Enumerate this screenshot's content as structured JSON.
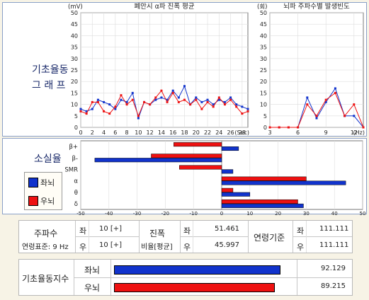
{
  "colors": {
    "left": "#1133cc",
    "right": "#ee1111",
    "frame": "#8aa0c8",
    "bg": "#f7f3e6"
  },
  "section_labels": {
    "basic_graph_line1": "기초율동",
    "basic_graph_line2": "그 래 프",
    "ratio": "소실율"
  },
  "legend": {
    "left": "좌뇌",
    "right": "우뇌"
  },
  "chart_data": [
    {
      "type": "line",
      "title": "폐안시 α파 진폭 평균",
      "ylabel": "(mV)",
      "xlabel": "(Sec)",
      "ylim": [
        0,
        50
      ],
      "xlim": [
        0,
        29
      ],
      "yticks": [
        0,
        5,
        10,
        15,
        20,
        25,
        30,
        35,
        40,
        45,
        50
      ],
      "xticks": [
        0,
        2,
        4,
        6,
        8,
        10,
        12,
        14,
        16,
        18,
        20,
        22,
        24,
        26,
        28
      ],
      "x": [
        0,
        1,
        2,
        3,
        4,
        5,
        6,
        7,
        8,
        9,
        10,
        11,
        12,
        13,
        14,
        15,
        16,
        17,
        18,
        19,
        20,
        21,
        22,
        23,
        24,
        25,
        26,
        27,
        28,
        29
      ],
      "series": [
        {
          "name": "좌뇌",
          "values": [
            8,
            7,
            8,
            12,
            11,
            10,
            8,
            12,
            11,
            15,
            4,
            11,
            10,
            12,
            13,
            12,
            16,
            13,
            18,
            10,
            13,
            11,
            12,
            10,
            12,
            11,
            13,
            10,
            9,
            8
          ]
        },
        {
          "name": "우뇌",
          "values": [
            7,
            6,
            11,
            11,
            7,
            6,
            9,
            14,
            10,
            12,
            5,
            11,
            10,
            13,
            16,
            11,
            15,
            11,
            12,
            10,
            12,
            8,
            11,
            9,
            13,
            10,
            12,
            9,
            6,
            7
          ]
        }
      ]
    },
    {
      "type": "line",
      "title": "뇌파 주파수별 발생빈도",
      "ylabel": "(회)",
      "xlabel": "(Hz)",
      "ylim": [
        0,
        50
      ],
      "xlim": [
        3,
        13
      ],
      "yticks": [
        0,
        5,
        10,
        15,
        20,
        25,
        30,
        35,
        40,
        45,
        50
      ],
      "xticks": [
        3,
        6,
        9,
        12
      ],
      "x": [
        3,
        4,
        5,
        6,
        7,
        8,
        9,
        10,
        11,
        12,
        13
      ],
      "series": [
        {
          "name": "좌뇌",
          "values": [
            0,
            0,
            0,
            0,
            13,
            4,
            11,
            17,
            5,
            5,
            0
          ]
        },
        {
          "name": "우뇌",
          "values": [
            0,
            0,
            0,
            0,
            10,
            5,
            12,
            15,
            5,
            10,
            0
          ]
        }
      ]
    },
    {
      "type": "bar",
      "orientation": "horizontal",
      "categories": [
        "β+",
        "β-",
        "SMR",
        "α",
        "θ",
        "δ"
      ],
      "xlim": [
        -50,
        50
      ],
      "xticks": [
        -50,
        -40,
        -30,
        -20,
        -10,
        0,
        10,
        20,
        30,
        40,
        50
      ],
      "series": [
        {
          "name": "우뇌",
          "values": [
            -17,
            -25,
            -15,
            30,
            4,
            27
          ]
        },
        {
          "name": "좌뇌",
          "values": [
            6,
            -45,
            4,
            44,
            10,
            29
          ]
        }
      ]
    }
  ],
  "summary": {
    "freq": {
      "label": "주파수",
      "sub": "연령표준: 9 Hz",
      "left_tag": "좌",
      "left_val": "10 [+]",
      "right_tag": "우",
      "right_val": "10 [+]"
    },
    "amp": {
      "label": "진폭",
      "sub": "비율[평균]",
      "left_tag": "좌",
      "left_val": "51.461",
      "right_tag": "우",
      "right_val": "45.997"
    },
    "age": {
      "label": "연령기준",
      "left_tag": "좌",
      "left_val": "111.111",
      "right_tag": "우",
      "right_val": "111.111"
    }
  },
  "index": {
    "label": "기초율동지수",
    "rows": [
      {
        "name": "좌뇌",
        "value": "92.129",
        "fraction": 0.92,
        "color": "#1133cc"
      },
      {
        "name": "우뇌",
        "value": "89.215",
        "fraction": 0.89,
        "color": "#ee1111"
      }
    ]
  }
}
